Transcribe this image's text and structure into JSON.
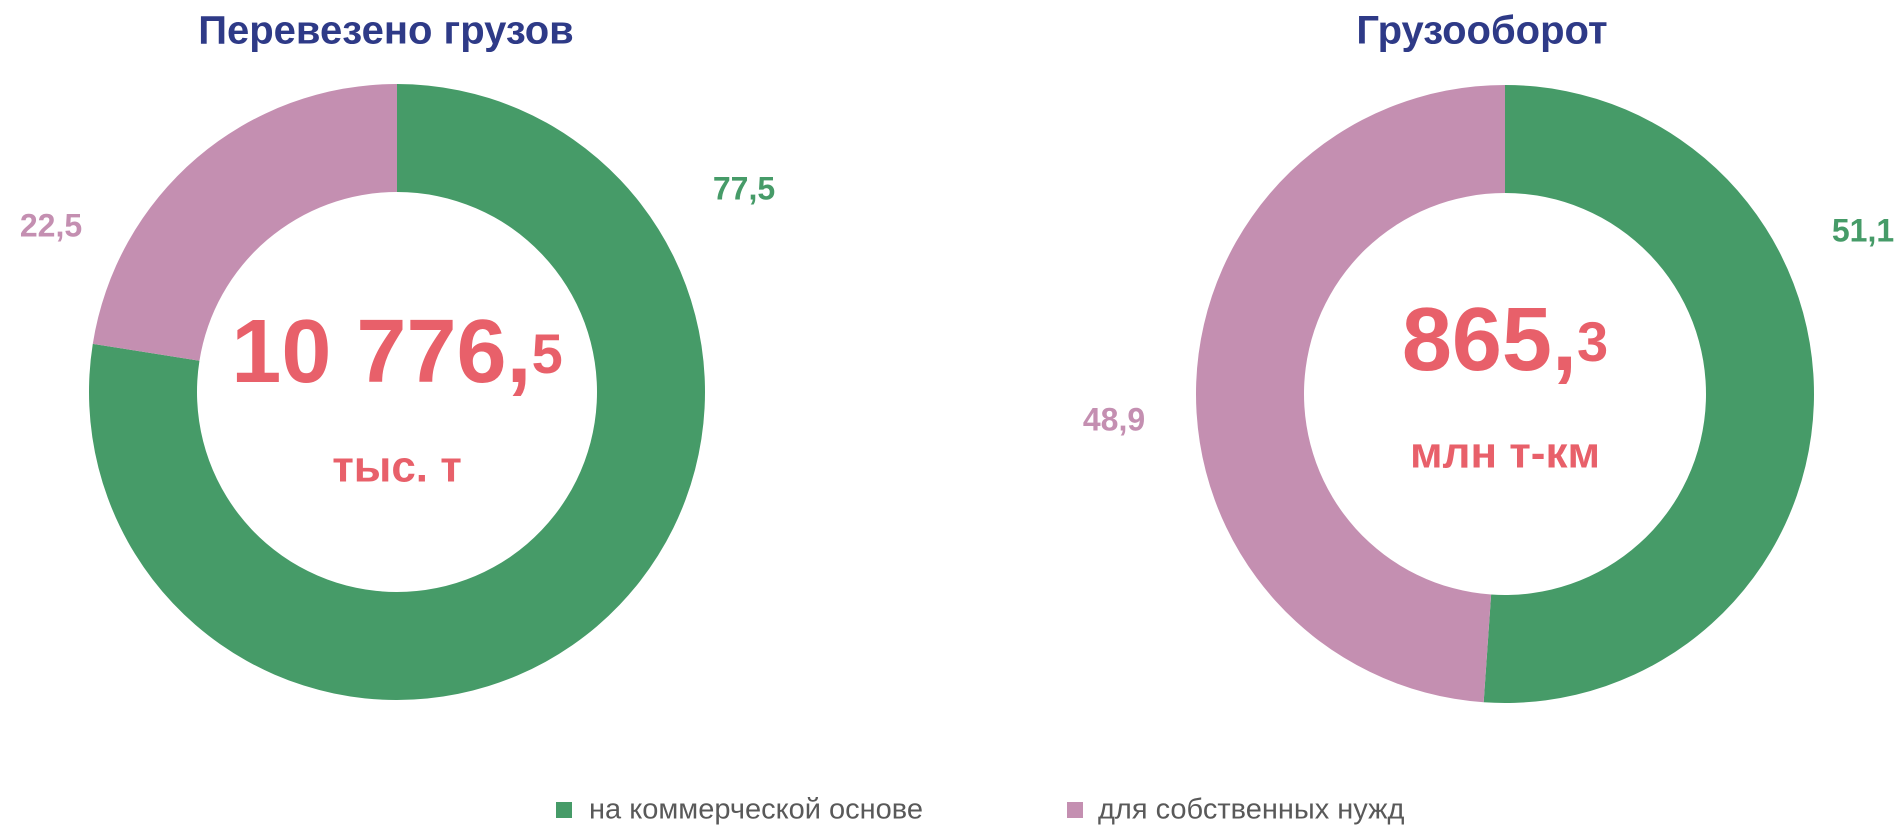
{
  "chart_data": [
    {
      "type": "pie",
      "title": "Перевезено грузов",
      "categories": [
        "на коммерческой основе",
        "для собственных нужд"
      ],
      "values": [
        77.5,
        22.5
      ],
      "value_labels": [
        "77,5",
        "22,5"
      ],
      "colors": [
        "#469b68",
        "#c48fb1"
      ],
      "center_text": [
        "10 776,",
        "5"
      ],
      "unit": "тыс. т"
    },
    {
      "type": "pie",
      "title": "Грузооборот",
      "categories": [
        "на коммерческой основе",
        "для собственных нужд"
      ],
      "values": [
        51.1,
        48.9
      ],
      "value_labels": [
        "51,1",
        "48,9"
      ],
      "colors": [
        "#469b68",
        "#c48fb1"
      ],
      "center_text": [
        "865,",
        "3"
      ],
      "unit": "млн т-км"
    }
  ]
}
